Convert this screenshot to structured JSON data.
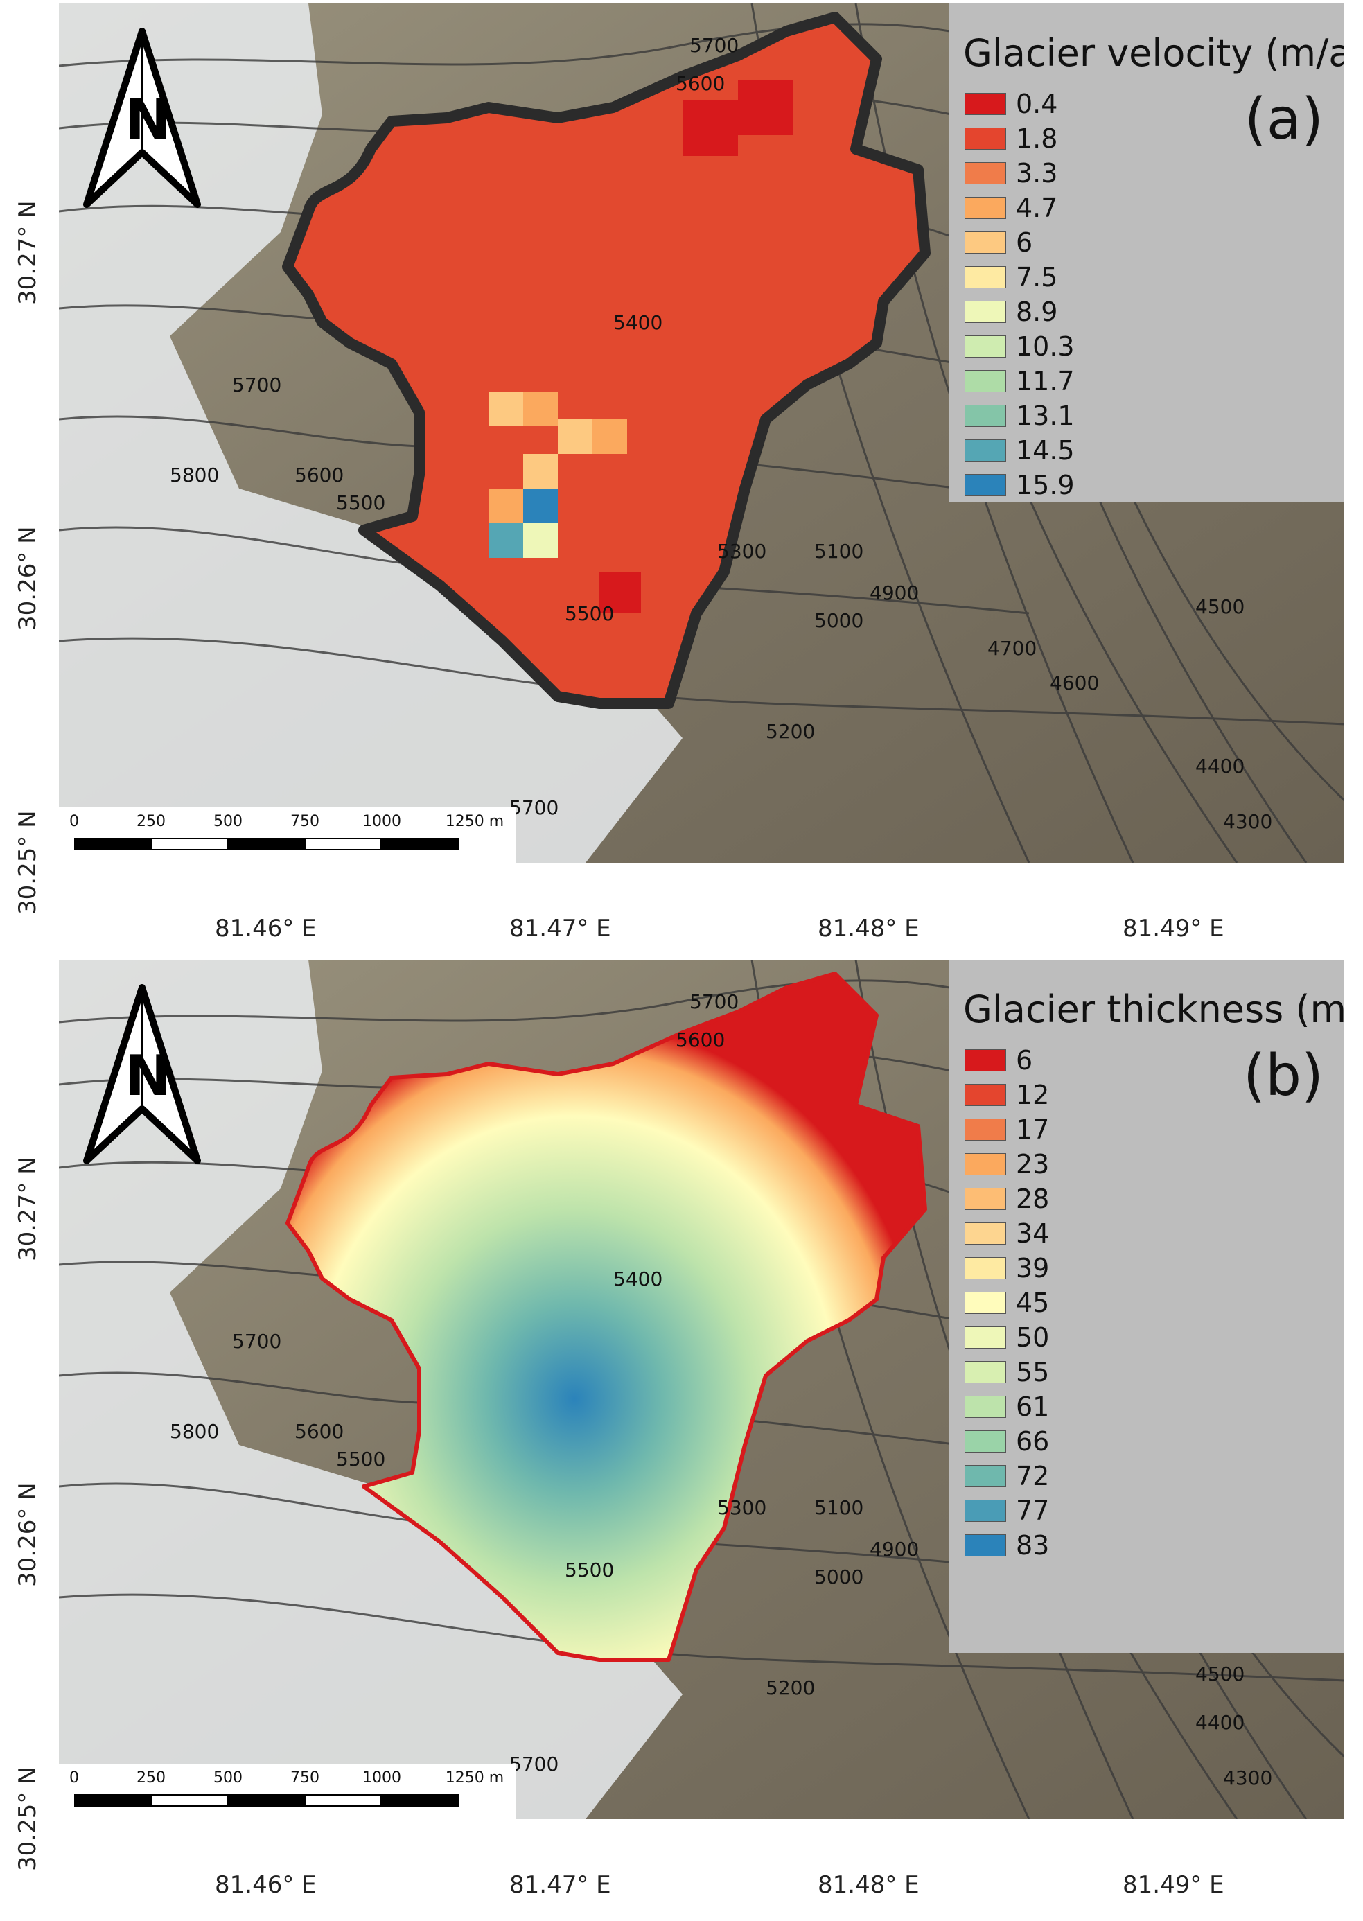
{
  "panels": [
    {
      "id": "a",
      "legend_title": "Glacier velocity (m/a)",
      "panel_letter": "(a)",
      "legend": [
        {
          "label": "0.4",
          "color": "#d7191c"
        },
        {
          "label": "1.8",
          "color": "#e4452e"
        },
        {
          "label": "3.3",
          "color": "#f07c4a"
        },
        {
          "label": "4.7",
          "color": "#fba95e"
        },
        {
          "label": "6",
          "color": "#fdc981"
        },
        {
          "label": "7.5",
          "color": "#feeaa2"
        },
        {
          "label": "8.9",
          "color": "#eef7b8"
        },
        {
          "label": "10.3",
          "color": "#cfecb0"
        },
        {
          "label": "11.7",
          "color": "#aedca7"
        },
        {
          "label": "13.1",
          "color": "#84c5a8"
        },
        {
          "label": "14.5",
          "color": "#55a6b4"
        },
        {
          "label": "15.9",
          "color": "#2b83ba"
        }
      ]
    },
    {
      "id": "b",
      "legend_title": "Glacier thickness (m)",
      "panel_letter": "(b)",
      "legend": [
        {
          "label": "6",
          "color": "#d7191c"
        },
        {
          "label": "12",
          "color": "#e4452e"
        },
        {
          "label": "17",
          "color": "#f07c4a"
        },
        {
          "label": "23",
          "color": "#fba95e"
        },
        {
          "label": "28",
          "color": "#fdbd74"
        },
        {
          "label": "34",
          "color": "#fdd590"
        },
        {
          "label": "39",
          "color": "#feeaa2"
        },
        {
          "label": "45",
          "color": "#fffcbc"
        },
        {
          "label": "50",
          "color": "#eef7b8"
        },
        {
          "label": "55",
          "color": "#d8efb1"
        },
        {
          "label": "61",
          "color": "#bde3ab"
        },
        {
          "label": "66",
          "color": "#9ad3a8"
        },
        {
          "label": "72",
          "color": "#6fb8ad"
        },
        {
          "label": "77",
          "color": "#4a9cb6"
        },
        {
          "label": "83",
          "color": "#2b83ba"
        }
      ]
    }
  ],
  "scale_bar": {
    "ticks": [
      "0",
      "250",
      "500",
      "750",
      "1000",
      "1250 m"
    ]
  },
  "lat_labels": [
    "30.27° N",
    "30.26° N",
    "30.25° N"
  ],
  "lon_labels": [
    "81.46° E",
    "81.47° E",
    "81.48° E",
    "81.49° E"
  ],
  "contour_labels": [
    "5700",
    "5600",
    "5400",
    "5700",
    "5800",
    "5600",
    "5500",
    "5300",
    "5100",
    "5000",
    "4900",
    "4700",
    "4600",
    "4500",
    "5500",
    "5200",
    "4400",
    "4300",
    "5600",
    "5700"
  ],
  "north_arrow": "N"
}
